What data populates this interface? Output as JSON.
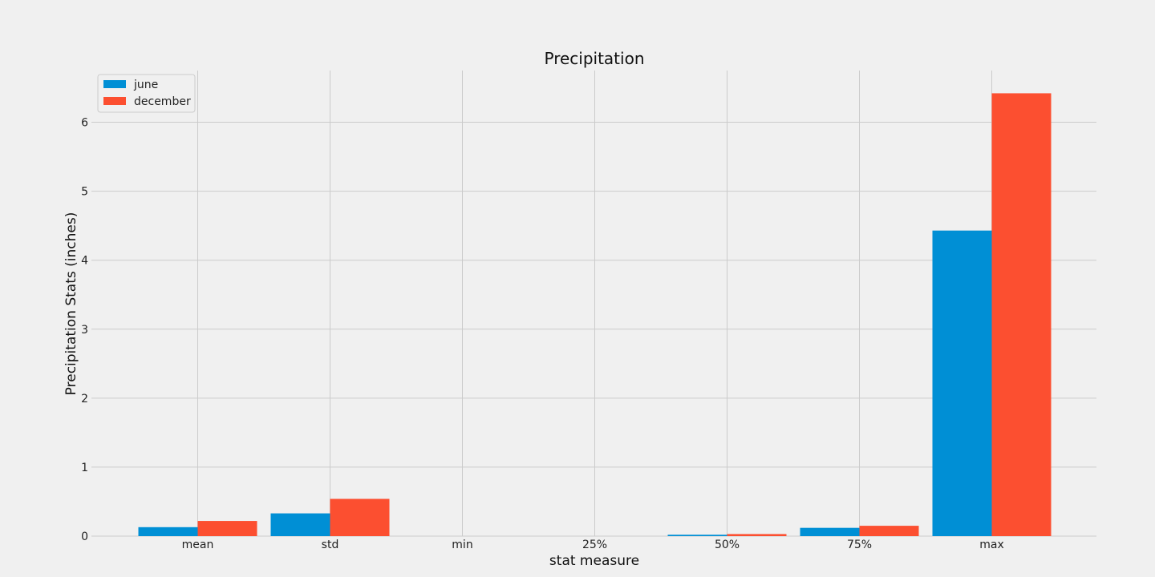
{
  "chart_data": {
    "type": "bar",
    "title": "Precipitation",
    "xlabel": "stat measure",
    "ylabel": "Precipitation Stats (inches)",
    "categories": [
      "mean",
      "std",
      "min",
      "25%",
      "50%",
      "75%",
      "max"
    ],
    "series": [
      {
        "name": "june",
        "color": "#008fd5",
        "values": [
          0.13,
          0.33,
          0.0,
          0.0,
          0.02,
          0.12,
          4.43
        ]
      },
      {
        "name": "december",
        "color": "#fc4f30",
        "values": [
          0.22,
          0.54,
          0.0,
          0.0,
          0.03,
          0.15,
          6.42
        ]
      }
    ],
    "ylim": [
      0,
      6.75
    ],
    "yticks": [
      0,
      1,
      2,
      3,
      4,
      5,
      6
    ],
    "grid": true,
    "legend_position": "top-left"
  }
}
